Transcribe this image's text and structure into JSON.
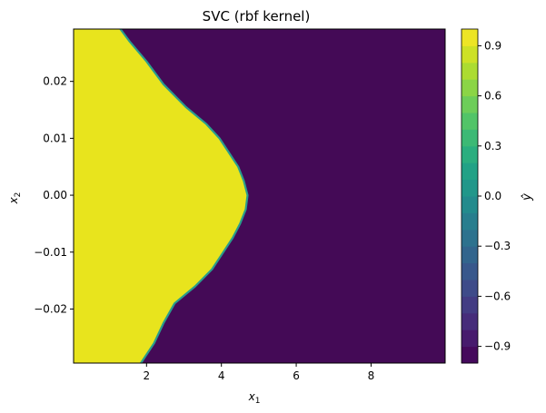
{
  "chart_data": {
    "type": "heatmap",
    "plot_kind": "filled contour (decision surface)",
    "title": "SVC (rbf kernel)",
    "xlabel": "x",
    "xlabel_sub": "1",
    "ylabel": "x",
    "ylabel_sub": "2",
    "xlim": [
      0.05,
      9.98
    ],
    "ylim": [
      -0.0295,
      0.0292
    ],
    "xticks": [
      2,
      4,
      6,
      8
    ],
    "yticks": [
      -0.02,
      -0.01,
      0.0,
      0.01,
      0.02
    ],
    "ytick_labels": [
      "−0.02",
      "−0.01",
      "0.00",
      "0.01",
      "0.02"
    ],
    "regions": [
      {
        "prediction": 1,
        "color": "#e8e41d",
        "side": "left of boundary"
      },
      {
        "prediction": -1,
        "color": "#440a56",
        "side": "right of boundary"
      }
    ],
    "decision_boundary": {
      "points": [
        {
          "x2": 0.0292,
          "x1": 1.3
        },
        {
          "x2": 0.027,
          "x1": 1.55
        },
        {
          "x2": 0.0235,
          "x1": 2.0
        },
        {
          "x2": 0.0195,
          "x1": 2.45
        },
        {
          "x2": 0.0155,
          "x1": 3.05
        },
        {
          "x2": 0.0125,
          "x1": 3.6
        },
        {
          "x2": 0.01,
          "x1": 3.95
        },
        {
          "x2": 0.0075,
          "x1": 4.2
        },
        {
          "x2": 0.005,
          "x1": 4.45
        },
        {
          "x2": 0.0025,
          "x1": 4.6
        },
        {
          "x2": 0.0,
          "x1": 4.7
        },
        {
          "x2": -0.0025,
          "x1": 4.65
        },
        {
          "x2": -0.005,
          "x1": 4.5
        },
        {
          "x2": -0.0075,
          "x1": 4.3
        },
        {
          "x2": -0.01,
          "x1": 4.05
        },
        {
          "x2": -0.013,
          "x1": 3.75
        },
        {
          "x2": -0.016,
          "x1": 3.3
        },
        {
          "x2": -0.019,
          "x1": 2.75
        },
        {
          "x2": -0.0225,
          "x1": 2.45
        },
        {
          "x2": -0.026,
          "x1": 2.2
        },
        {
          "x2": -0.0295,
          "x1": 1.85
        }
      ]
    },
    "colorbar": {
      "label": "ŷ",
      "range": [
        -1.0,
        1.0
      ],
      "levels": 20,
      "ticks": [
        -0.9,
        -0.6,
        -0.3,
        0.0,
        0.3,
        0.6,
        0.9
      ],
      "tick_labels": [
        "−0.9",
        "−0.6",
        "−0.3",
        "0.0",
        "0.3",
        "0.6",
        "0.9"
      ],
      "colormap": "viridis"
    }
  }
}
